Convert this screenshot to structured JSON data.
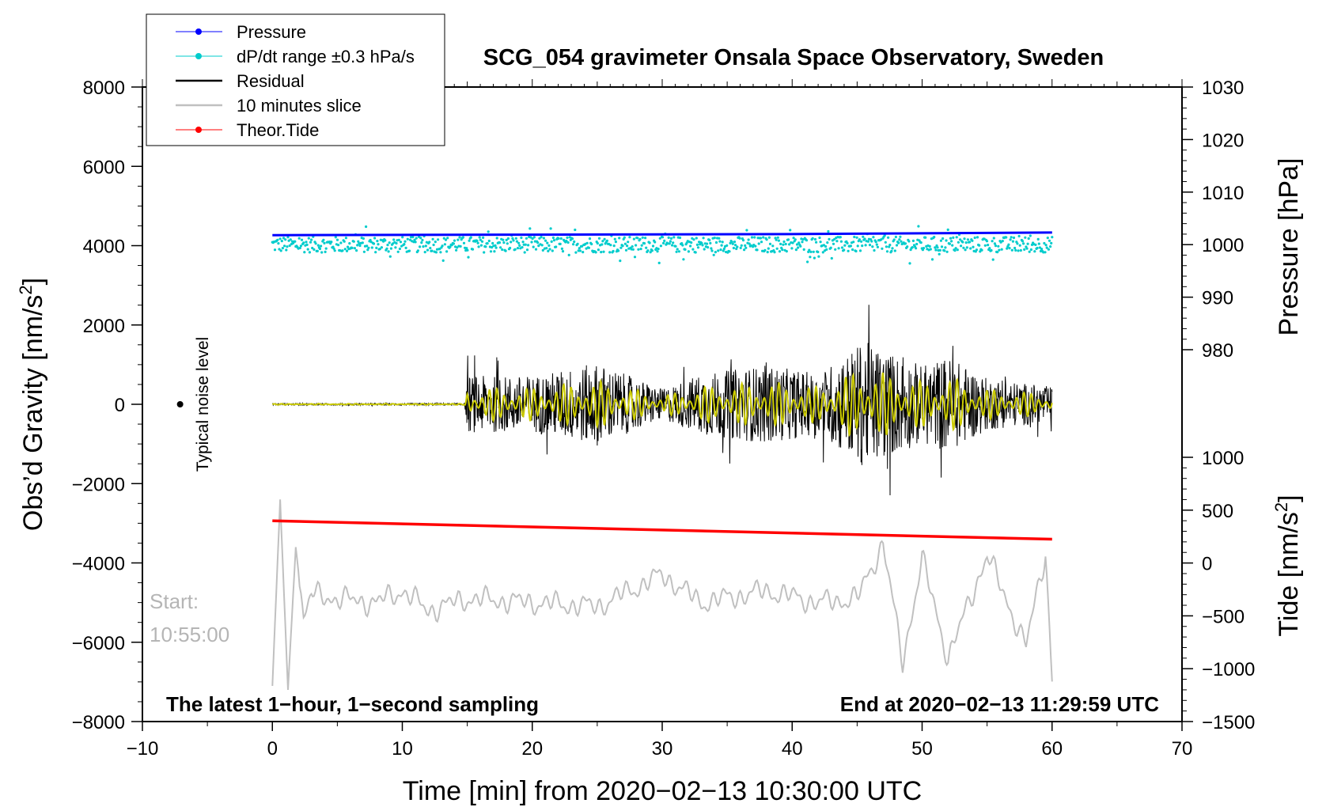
{
  "chart_data": {
    "type": "line",
    "title": "SCG_054 gravimeter Onsala Space Observatory, Sweden",
    "xlabel": "Time [min] from 2020−02−13 10:30:00 UTC",
    "ylabel_left": "Obs’d Gravity [nm/s",
    "ylabel_left_sup": "2",
    "ylabel_left_end": "]",
    "ylabel_right_pressure": "Pressure [hPa]",
    "ylabel_right_tide": "Tide [nm/s",
    "ylabel_right_tide_sup": "2",
    "ylabel_right_tide_end": "]",
    "xlim": [
      -10,
      70
    ],
    "ylim": [
      -8000,
      8000
    ],
    "pressure_ylim": [
      970,
      1030
    ],
    "tide_ylim": [
      -1500,
      1000
    ],
    "grid": false,
    "legend_position": "top-left",
    "x_ticks": [
      "−10",
      "0",
      "10",
      "20",
      "30",
      "40",
      "50",
      "60",
      "70"
    ],
    "y_ticks": [
      "8000",
      "6000",
      "4000",
      "2000",
      "0",
      "−2000",
      "−4000",
      "−6000",
      "−8000"
    ],
    "pressure_ticks": [
      "1030",
      "1020",
      "1010",
      "1000",
      "990",
      "980"
    ],
    "tide_ticks": [
      "1000",
      "500",
      "0",
      "−500",
      "−1000",
      "−1500"
    ],
    "series": [
      {
        "name": "Pressure",
        "color": "#0000ff",
        "axis": "pressure",
        "x": [
          0,
          20,
          40,
          60
        ],
        "values": [
          1001.8,
          1001.9,
          1002.0,
          1002.3
        ]
      },
      {
        "name": "dP/dt range ±0.3 hPa/s",
        "color": "#00cccc",
        "axis": "pressure",
        "x_range": [
          0,
          60
        ],
        "center": 1000,
        "spread": 1.5
      },
      {
        "name": "Residual",
        "color": "#000000",
        "axis": "gravity",
        "envelope_x": [
          0,
          14.8,
          15,
          20,
          25,
          30,
          33,
          38,
          42,
          45.5,
          50,
          52,
          55,
          60
        ],
        "envelope_amp": [
          40,
          50,
          1300,
          1300,
          1900,
          700,
          1400,
          1800,
          1400,
          2900,
          1800,
          2200,
          1200,
          800
        ]
      },
      {
        "name": "10 minutes slice",
        "color": "#c0c0c0",
        "axis": "gravity",
        "x": [
          0,
          0.6,
          1.2,
          1.8,
          2.4,
          3,
          5,
          8,
          10,
          12,
          15,
          20,
          25,
          30,
          33,
          38,
          42,
          45,
          47,
          48.5,
          50,
          52,
          55,
          58,
          59.5,
          60
        ],
        "values": [
          -7100,
          -2400,
          -7200,
          -3600,
          -5400,
          -4800,
          -4900,
          -5000,
          -4700,
          -5200,
          -4900,
          -5000,
          -5100,
          -4300,
          -5000,
          -4700,
          -5000,
          -4900,
          -3500,
          -6500,
          -3900,
          -6400,
          -3800,
          -6100,
          -3700,
          -6900
        ]
      },
      {
        "name": "Theor.Tide",
        "color": "#ff0000",
        "axis": "tide",
        "x": [
          0,
          60
        ],
        "values": [
          400,
          225
        ]
      }
    ],
    "notes": {
      "noise": "Typical noise level",
      "start_label": "Start:",
      "start_time": "10:55:00",
      "bottom_left": "The latest 1−hour, 1−second sampling",
      "bottom_right": "End at 2020−02−13 11:29:59 UTC"
    },
    "colors": {
      "residual_filtered": "#cccc00"
    }
  }
}
